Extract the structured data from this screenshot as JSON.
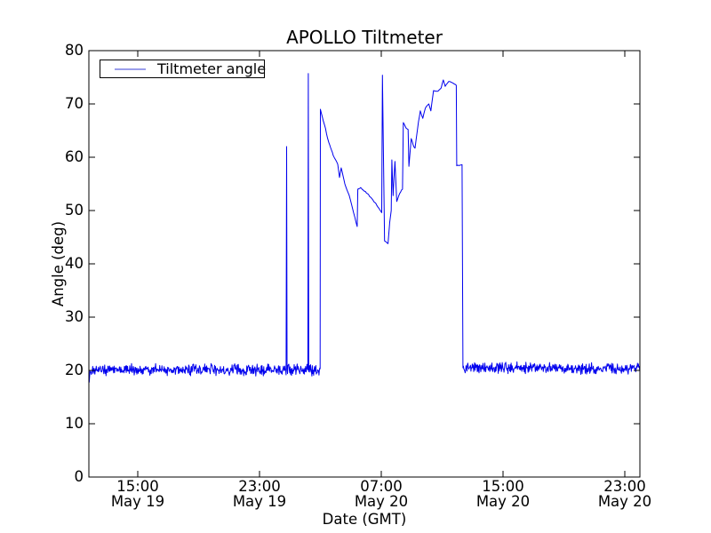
{
  "chart_data": {
    "type": "line",
    "title": "APOLLO Tiltmeter",
    "xlabel": "Date (GMT)",
    "ylabel": "Angle (deg)",
    "grid": false,
    "legend": {
      "position": "upper left",
      "entries": [
        {
          "label": "Tiltmeter angle",
          "color": "#0000ee"
        }
      ]
    },
    "colors": {
      "line": "#0000ee",
      "legend_sample": "#9a9eeb",
      "frame": "#000000",
      "text": "#000000",
      "background": "#ffffff"
    },
    "ylim": [
      0,
      80
    ],
    "yticks": [
      0,
      10,
      20,
      30,
      40,
      50,
      60,
      70,
      80
    ],
    "x_unit": "hours since 1998 May 19 00:00 GMT",
    "xlim_hours": [
      11.787,
      48.0
    ],
    "xticks": [
      {
        "hour": 15,
        "time": "15:00",
        "date": "May 19"
      },
      {
        "hour": 23,
        "time": "23:00",
        "date": "May 19"
      },
      {
        "hour": 31,
        "time": "07:00",
        "date": "May 20"
      },
      {
        "hour": 39,
        "time": "15:00",
        "date": "May 20"
      },
      {
        "hour": 47,
        "time": "23:00",
        "date": "May 20"
      }
    ],
    "series": [
      {
        "name": "Tiltmeter angle",
        "description": "Noisy baseline near 20 deg with two narrow spikes (62 deg at 00:47 May 20, 75.7 deg at 02:13 May 20) and a large excursion from ~03:00 to ~12:15 May 20 peaking near 75 deg",
        "segments": [
          {
            "kind": "path",
            "amp": 0.3,
            "points": [
              [
                11.787,
                19.8
              ],
              [
                11.81,
                17.8
              ],
              [
                11.85,
                19.5
              ]
            ]
          },
          {
            "kind": "noisy",
            "t": [
              11.86,
              24.75
            ],
            "level": 20.1,
            "amp": 1.25
          },
          {
            "kind": "spike",
            "t": 24.78,
            "peak": 62.0,
            "base": 20.1
          },
          {
            "kind": "noisy",
            "t": [
              24.81,
              26.18
            ],
            "level": 20.1,
            "amp": 1.25
          },
          {
            "kind": "spike",
            "t": 26.21,
            "peak": 75.7,
            "base": 20.1
          },
          {
            "kind": "noisy",
            "t": [
              26.24,
              26.97
            ],
            "level": 20.1,
            "amp": 1.25
          },
          {
            "kind": "path",
            "amp": 0.15,
            "points": [
              [
                26.985,
                20.3
              ],
              [
                27.0,
                69.0
              ],
              [
                27.26,
                66.2
              ],
              [
                27.55,
                62.8
              ],
              [
                27.85,
                60.3
              ],
              [
                28.14,
                58.7
              ],
              [
                28.26,
                56.2
              ],
              [
                28.37,
                58.0
              ],
              [
                28.61,
                55.0
              ],
              [
                28.9,
                52.8
              ],
              [
                29.19,
                49.5
              ],
              [
                29.42,
                47.0
              ],
              [
                29.46,
                54.0
              ],
              [
                29.64,
                54.3
              ],
              [
                30.02,
                53.3
              ],
              [
                30.3,
                52.5
              ],
              [
                30.59,
                51.5
              ],
              [
                30.77,
                50.7
              ],
              [
                30.94,
                50.0
              ],
              [
                31.03,
                49.6
              ],
              [
                31.08,
                75.4
              ],
              [
                31.22,
                44.3
              ],
              [
                31.45,
                43.8
              ],
              [
                31.56,
                47.8
              ],
              [
                31.66,
                50.0
              ],
              [
                31.7,
                59.5
              ],
              [
                31.78,
                52.8
              ],
              [
                31.9,
                59.2
              ],
              [
                32.02,
                51.7
              ],
              [
                32.21,
                53.2
              ],
              [
                32.4,
                54.0
              ],
              [
                32.45,
                66.5
              ],
              [
                32.65,
                65.4
              ],
              [
                32.77,
                65.2
              ],
              [
                32.82,
                58.3
              ],
              [
                32.97,
                63.5
              ],
              [
                33.1,
                62.3
              ],
              [
                33.22,
                61.7
              ],
              [
                33.45,
                66.7
              ],
              [
                33.57,
                68.7
              ],
              [
                33.73,
                67.3
              ],
              [
                33.9,
                69.2
              ],
              [
                34.13,
                70.0
              ],
              [
                34.26,
                68.7
              ],
              [
                34.44,
                72.5
              ],
              [
                34.73,
                72.4
              ],
              [
                34.94,
                73.0
              ],
              [
                35.08,
                74.5
              ],
              [
                35.2,
                73.3
              ],
              [
                35.43,
                74.2
              ],
              [
                35.66,
                74.0
              ],
              [
                35.93,
                73.5
              ],
              [
                35.96,
                58.4
              ],
              [
                36.31,
                58.6
              ],
              [
                36.37,
                20.5
              ]
            ]
          },
          {
            "kind": "noisy",
            "t": [
              36.4,
              47.99
            ],
            "level": 20.4,
            "amp": 1.25
          }
        ]
      }
    ]
  }
}
